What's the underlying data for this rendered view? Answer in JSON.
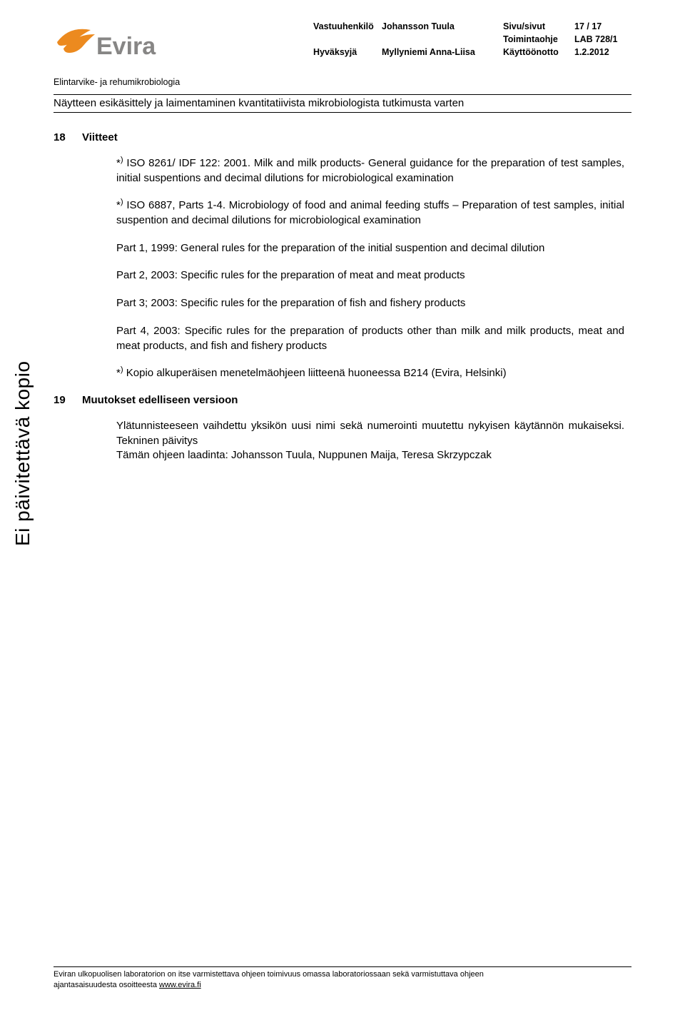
{
  "colors": {
    "logo_orange": "#ec8a1f",
    "logo_grey": "#878685",
    "text": "#000000",
    "background": "#ffffff",
    "rule": "#000000"
  },
  "typography": {
    "meta_size_pt": 9.5,
    "body_size_pt": 11,
    "heading_size_pt": 11,
    "side_text_size_pt": 21,
    "footer_size_pt": 8
  },
  "logo": {
    "text": "Evira"
  },
  "meta": {
    "rows": [
      {
        "c1": "Vastuuhenkilö",
        "c2": "Johansson Tuula",
        "c3": "Sivu/sivut",
        "c4": "17 / 17"
      },
      {
        "c1": "",
        "c2": "",
        "c3": "Toimintaohje",
        "c4": "LAB 728/1"
      },
      {
        "c1": "Hyväksyjä",
        "c2": "Myllyniemi Anna-Liisa",
        "c3": "Käyttöönotto",
        "c4": "1.2.2012"
      }
    ]
  },
  "department": "Elintarvike- ja rehumikrobiologia",
  "doc_title": "Näytteen esikäsittely ja laimentaminen kvantitatiivista mikrobiologista tutkimusta varten",
  "side_text": "Ei päivitettävä kopio",
  "sections": {
    "s18": {
      "num": "18",
      "title": "Viitteet"
    },
    "s19": {
      "num": "19",
      "title": "Muutokset edelliseen versioon"
    }
  },
  "paragraphs": {
    "p1": "*) ISO 8261/ IDF 122: 2001. Milk and milk products- General guidance for the preparation of test samples, initial suspentions and decimal dilutions for microbiological examination",
    "p2": "*) ISO 6887, Parts 1-4. Microbiology of food and animal feeding stuffs – Preparation of test samples, initial suspention and decimal dilutions for microbiological examination",
    "p3": "Part 1, 1999: General rules for the preparation of the initial suspention and decimal dilution",
    "p4": "Part 2, 2003: Specific rules for the preparation of meat and meat products",
    "p5": "Part 3; 2003: Specific rules for the preparation of fish and fishery products",
    "p6": "Part 4, 2003: Specific rules for the preparation of products other than milk and milk products, meat and meat products, and fish and fishery products",
    "p7": "*) Kopio alkuperäisen menetelmäohjeen liitteenä huoneessa B214 (Evira, Helsinki)",
    "p8a": "Ylätunnisteeseen vaihdettu yksikön uusi nimi sekä numerointi muutettu nykyisen käytännön mukaiseksi. Tekninen päivitys",
    "p8b": "Tämän ohjeen laadinta: Johansson Tuula, Nuppunen Maija, Teresa Skrzypczak"
  },
  "footer": {
    "line1": "Eviran ulkopuolisen laboratorion on itse varmistettava ohjeen toimivuus omassa laboratoriossaan sekä varmistuttava ohjeen",
    "line2_pre": "ajantasaisuudesta osoitteesta ",
    "link": "www.evira.fi"
  }
}
